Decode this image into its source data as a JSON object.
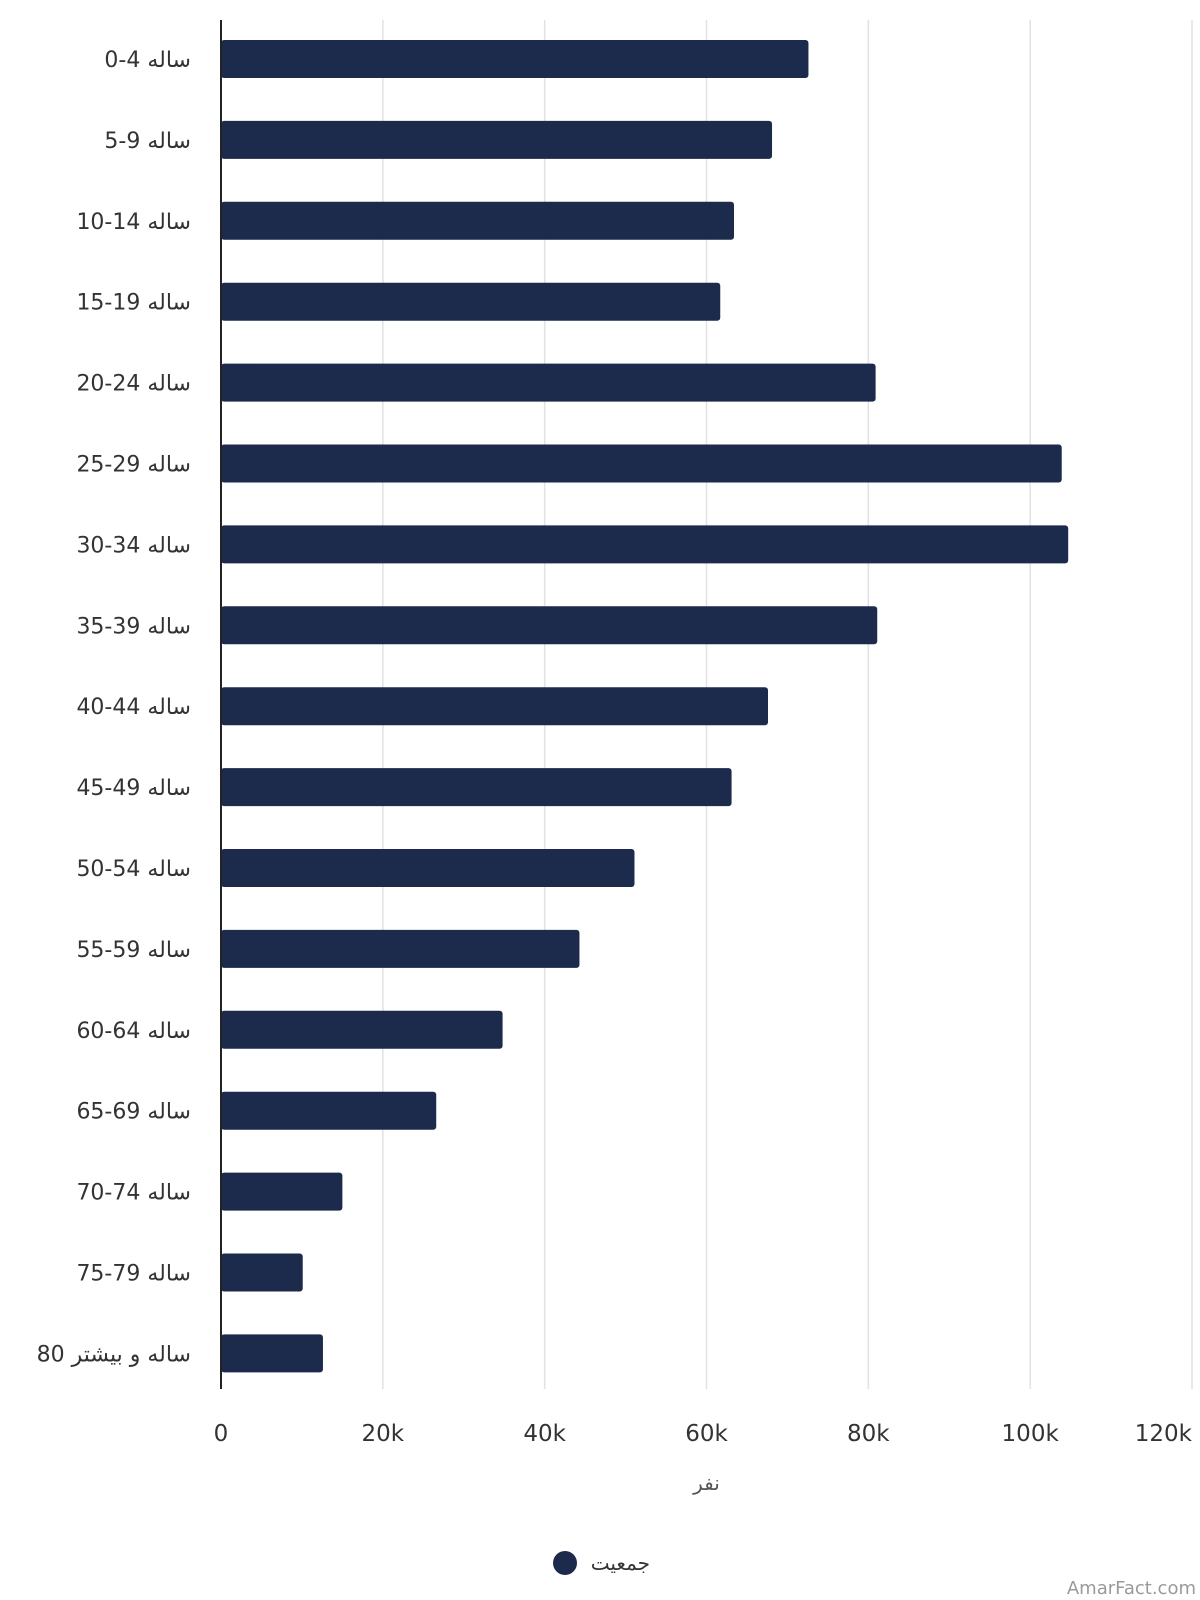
{
  "chart_data": {
    "type": "bar",
    "orientation": "horizontal",
    "categories": [
      "0-4 ساله",
      "5-9 ساله",
      "10-14 ساله",
      "15-19 ساله",
      "20-24 ساله",
      "25-29 ساله",
      "30-34 ساله",
      "35-39 ساله",
      "40-44 ساله",
      "45-49 ساله",
      "50-54 ساله",
      "55-59 ساله",
      "60-64 ساله",
      "65-69 ساله",
      "70-74 ساله",
      "75-79 ساله",
      "80 ساله و بیشتر"
    ],
    "series": [
      {
        "name": "جمعیت",
        "color": "#1c2a4c",
        "values": [
          72600,
          68100,
          63400,
          61700,
          80900,
          103900,
          104700,
          81100,
          67600,
          63100,
          51100,
          44300,
          34800,
          26600,
          15000,
          10100,
          12600
        ]
      }
    ],
    "xlabel": "نفر",
    "ylabel": "",
    "xlim": [
      0,
      120000
    ],
    "x_ticks": [
      "0",
      "20k",
      "40k",
      "60k",
      "80k",
      "100k",
      "120k"
    ],
    "x_tick_values": [
      0,
      20000,
      40000,
      60000,
      80000,
      100000,
      120000
    ],
    "grid": true,
    "legend_position": "bottom-center",
    "watermark": "AmarFact.com"
  }
}
